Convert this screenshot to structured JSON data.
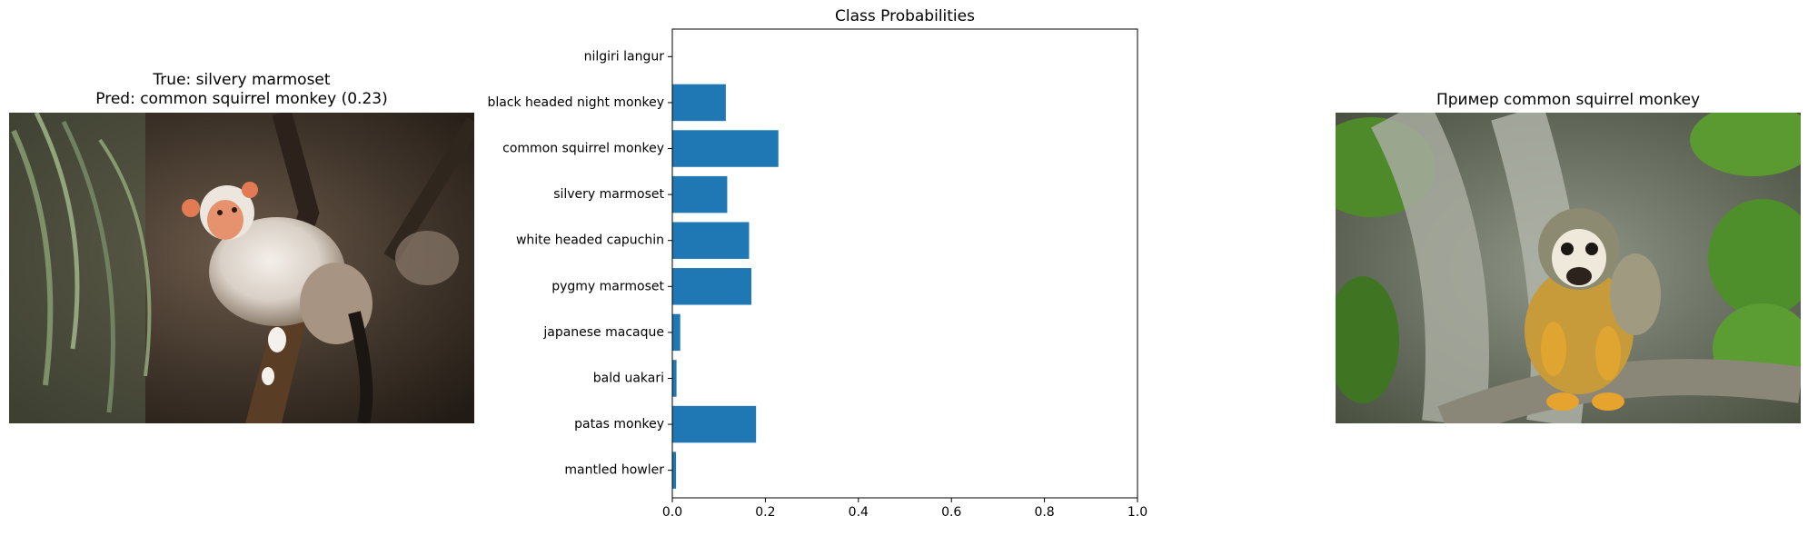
{
  "left_panel": {
    "title_line1": "True: silvery marmoset",
    "title_line2": "Pred: common squirrel monkey (0.23)"
  },
  "right_panel": {
    "title": "Пример common squirrel monkey"
  },
  "chart_data": {
    "type": "bar",
    "orientation": "horizontal",
    "title": "Class Probabilities",
    "xlabel": "",
    "ylabel": "",
    "xlim": [
      0,
      1
    ],
    "xticks": [
      "0.0",
      "0.2",
      "0.4",
      "0.6",
      "0.8",
      "1.0"
    ],
    "categories": [
      "nilgiri langur",
      "black headed night monkey",
      "common squirrel monkey",
      "silvery marmoset",
      "white headed capuchin",
      "pygmy marmoset",
      "japanese macaque",
      "bald uakari",
      "patas monkey",
      "mantled howler"
    ],
    "values": [
      0.0,
      0.115,
      0.228,
      0.118,
      0.165,
      0.17,
      0.017,
      0.009,
      0.18,
      0.008
    ],
    "bar_color": "#1f77b4",
    "grid": false
  }
}
